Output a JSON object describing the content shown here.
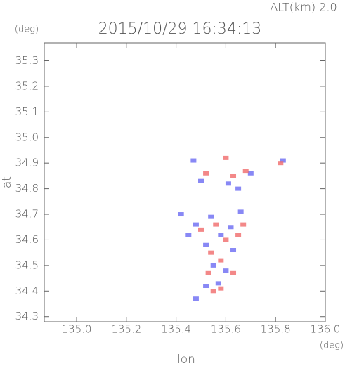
{
  "chart_data": {
    "type": "scatter",
    "title": "2015/10/29 16:34:13",
    "subtitle": "ALT(km) 2.0",
    "ylabel": "lat",
    "y_unit": "(deg)",
    "xlabel": "lon",
    "x_unit": "(deg)",
    "xlim": [
      134.87,
      136.0
    ],
    "ylim": [
      34.28,
      35.37
    ],
    "xticks": [
      {
        "value": 135,
        "label": "135.0"
      },
      135.2,
      135.4,
      135.6,
      135.8,
      {
        "value": 136,
        "label": "136.0"
      }
    ],
    "yticks": [
      34.3,
      34.4,
      34.5,
      34.6,
      34.7,
      34.8,
      34.9,
      {
        "value": 35,
        "label": "35.0"
      },
      35.1,
      35.2,
      35.3
    ],
    "series": [
      {
        "color": "#6a6af2",
        "x": [
          135.42,
          135.48,
          135.45,
          135.52,
          135.58,
          135.62,
          135.55,
          135.6,
          135.57,
          135.52,
          135.48,
          135.5,
          135.61,
          135.65,
          135.7,
          135.83,
          135.47,
          135.63,
          135.54,
          135.66
        ],
        "values": [
          34.7,
          34.66,
          34.62,
          34.58,
          34.62,
          34.65,
          34.5,
          34.48,
          34.43,
          34.42,
          34.37,
          34.83,
          34.82,
          34.8,
          34.86,
          34.91,
          34.91,
          34.56,
          34.69,
          34.71
        ]
      },
      {
        "color": "#f06a6a",
        "x": [
          135.5,
          135.56,
          135.6,
          135.67,
          135.54,
          135.58,
          135.63,
          135.58,
          135.55,
          135.53,
          135.68,
          135.63,
          135.52,
          135.6,
          135.82,
          135.65
        ],
        "values": [
          34.64,
          34.66,
          34.6,
          34.66,
          34.55,
          34.52,
          34.47,
          34.41,
          34.4,
          34.47,
          34.87,
          34.85,
          34.86,
          34.92,
          34.9,
          34.62
        ]
      }
    ]
  }
}
